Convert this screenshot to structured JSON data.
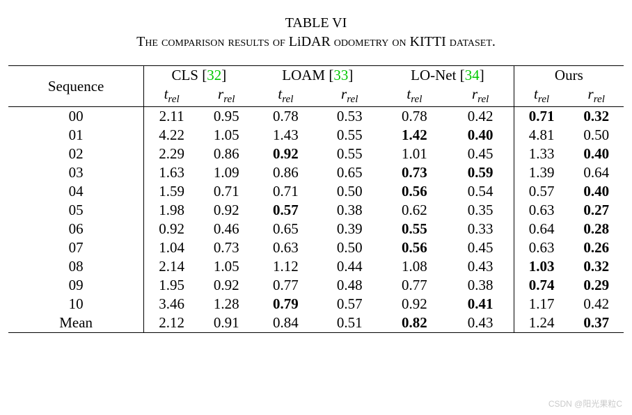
{
  "caption": {
    "table_label": "TABLE VI",
    "line2_a": "The comparison results of ",
    "line2_b": "LiDAR",
    "line2_c": " odometry on ",
    "line2_d": "KITTI",
    "line2_e": " dataset.",
    "fontsize_pt": 20
  },
  "table": {
    "type": "table",
    "text_color": "#000000",
    "ref_color": "#00c800",
    "background_color": "#ffffff",
    "rule_color": "#000000",
    "top_rule_width": 1.8,
    "mid_rule_width": 1.0,
    "fontsize_pt": 21,
    "seq_header": "Sequence",
    "methods": [
      {
        "name": "CLS",
        "ref": "[32]",
        "vleft": true
      },
      {
        "name": "LOAM",
        "ref": "[33]",
        "vleft": false
      },
      {
        "name": "LO-Net",
        "ref": "[34]",
        "vleft": false
      },
      {
        "name": "Ours",
        "ref": "",
        "vleft": true
      }
    ],
    "subheaders": {
      "t": "t",
      "t_sub": "rel",
      "r": "r",
      "r_sub": "rel"
    },
    "sequences": [
      "00",
      "01",
      "02",
      "03",
      "04",
      "05",
      "06",
      "07",
      "08",
      "09",
      "10",
      "Mean"
    ],
    "data": {
      "cls": {
        "t": [
          "2.11",
          "4.22",
          "2.29",
          "1.63",
          "1.59",
          "1.98",
          "0.92",
          "1.04",
          "2.14",
          "1.95",
          "3.46",
          "2.12"
        ],
        "r": [
          "0.95",
          "1.05",
          "0.86",
          "1.09",
          "0.71",
          "0.92",
          "0.46",
          "0.73",
          "1.05",
          "0.92",
          "1.28",
          "0.91"
        ]
      },
      "loam": {
        "t": [
          "0.78",
          "1.43",
          "0.92",
          "0.86",
          "0.71",
          "0.57",
          "0.65",
          "0.63",
          "1.12",
          "0.77",
          "0.79",
          "0.84"
        ],
        "r": [
          "0.53",
          "0.55",
          "0.55",
          "0.65",
          "0.50",
          "0.38",
          "0.39",
          "0.50",
          "0.44",
          "0.48",
          "0.57",
          "0.51"
        ]
      },
      "lonet": {
        "t": [
          "0.78",
          "1.42",
          "1.01",
          "0.73",
          "0.56",
          "0.62",
          "0.55",
          "0.56",
          "1.08",
          "0.77",
          "0.92",
          "0.82"
        ],
        "r": [
          "0.42",
          "0.40",
          "0.45",
          "0.59",
          "0.54",
          "0.35",
          "0.33",
          "0.45",
          "0.43",
          "0.38",
          "0.41",
          "0.43"
        ]
      },
      "ours": {
        "t": [
          "0.71",
          "4.81",
          "1.33",
          "1.39",
          "0.57",
          "0.63",
          "0.64",
          "0.63",
          "1.03",
          "0.74",
          "1.17",
          "1.24"
        ],
        "r": [
          "0.32",
          "0.50",
          "0.40",
          "0.64",
          "0.40",
          "0.27",
          "0.28",
          "0.26",
          "0.32",
          "0.29",
          "0.42",
          "0.37"
        ]
      }
    },
    "bold": {
      "loam": {
        "t": [
          false,
          false,
          true,
          false,
          false,
          true,
          false,
          false,
          false,
          false,
          true,
          false
        ],
        "r": [
          false,
          false,
          false,
          false,
          false,
          false,
          false,
          false,
          false,
          false,
          false,
          false
        ]
      },
      "lonet": {
        "t": [
          false,
          true,
          false,
          true,
          true,
          false,
          true,
          true,
          false,
          false,
          false,
          true
        ],
        "r": [
          false,
          true,
          false,
          true,
          false,
          false,
          false,
          false,
          false,
          false,
          true,
          false
        ]
      },
      "ours": {
        "t": [
          true,
          false,
          false,
          false,
          false,
          false,
          false,
          false,
          true,
          true,
          false,
          false
        ],
        "r": [
          true,
          false,
          true,
          false,
          true,
          true,
          true,
          true,
          true,
          true,
          false,
          true
        ]
      },
      "cls": {
        "t": [
          false,
          false,
          false,
          false,
          false,
          false,
          false,
          false,
          false,
          false,
          false,
          false
        ],
        "r": [
          false,
          false,
          false,
          false,
          false,
          false,
          false,
          false,
          false,
          false,
          false,
          false
        ]
      }
    }
  },
  "watermark": "CSDN @阳光果粒C"
}
